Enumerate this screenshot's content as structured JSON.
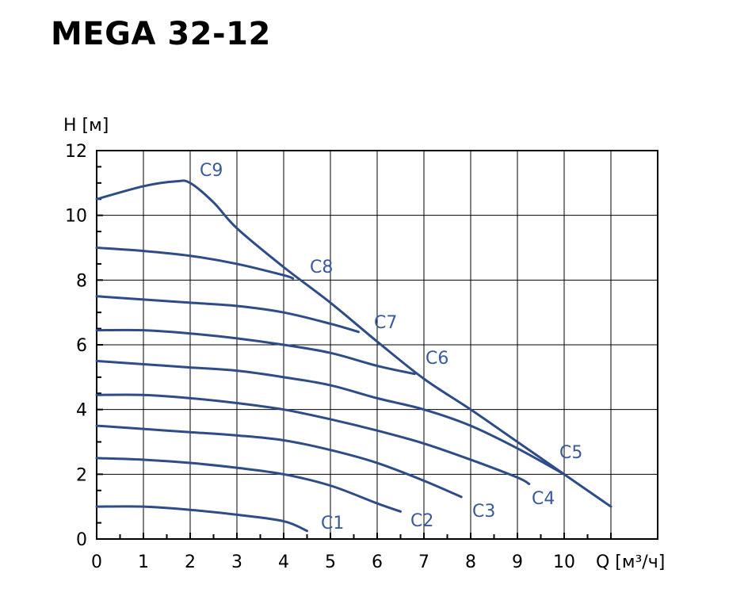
{
  "title": "MEGA 32-12",
  "chart_data": {
    "type": "line",
    "title": "MEGA 32-12",
    "xlabel": "Q [м³/ч]",
    "ylabel": "H [м]",
    "xlim": [
      0,
      11
    ],
    "ylim": [
      0,
      12
    ],
    "xticks": [
      "0",
      "1",
      "2",
      "3",
      "4",
      "5",
      "6",
      "7",
      "8",
      "9",
      "10"
    ],
    "yticks": [
      "0",
      "2",
      "4",
      "6",
      "8",
      "10",
      "12"
    ],
    "grid": true,
    "line_color": "#2e4c87",
    "label_color": "#3a5a99",
    "series": [
      {
        "name": "C1",
        "points": [
          [
            0,
            1.0
          ],
          [
            1,
            1.0
          ],
          [
            2,
            0.9
          ],
          [
            3,
            0.75
          ],
          [
            4,
            0.55
          ],
          [
            4.5,
            0.25
          ]
        ]
      },
      {
        "name": "C2",
        "points": [
          [
            0,
            2.5
          ],
          [
            1,
            2.45
          ],
          [
            2,
            2.35
          ],
          [
            3,
            2.2
          ],
          [
            4,
            2.0
          ],
          [
            5,
            1.65
          ],
          [
            6,
            1.1
          ],
          [
            6.5,
            0.85
          ]
        ]
      },
      {
        "name": "C3",
        "points": [
          [
            0,
            3.5
          ],
          [
            1,
            3.4
          ],
          [
            2,
            3.3
          ],
          [
            3,
            3.2
          ],
          [
            4,
            3.05
          ],
          [
            5,
            2.75
          ],
          [
            6,
            2.35
          ],
          [
            7,
            1.8
          ],
          [
            7.8,
            1.3
          ]
        ]
      },
      {
        "name": "C4",
        "points": [
          [
            0,
            4.45
          ],
          [
            1,
            4.45
          ],
          [
            2,
            4.35
          ],
          [
            3,
            4.2
          ],
          [
            4,
            4.0
          ],
          [
            5,
            3.7
          ],
          [
            6,
            3.35
          ],
          [
            7,
            2.95
          ],
          [
            8,
            2.45
          ],
          [
            9,
            1.9
          ],
          [
            9.25,
            1.7
          ]
        ]
      },
      {
        "name": "C5",
        "points": [
          [
            0,
            5.5
          ],
          [
            1,
            5.4
          ],
          [
            2,
            5.3
          ],
          [
            3,
            5.2
          ],
          [
            4,
            5.0
          ],
          [
            5,
            4.75
          ],
          [
            6,
            4.35
          ],
          [
            7,
            4.0
          ],
          [
            8,
            3.5
          ],
          [
            9,
            2.8
          ],
          [
            10,
            2.0
          ]
        ]
      },
      {
        "name": "C6",
        "points": [
          [
            0,
            6.45
          ],
          [
            1,
            6.45
          ],
          [
            2,
            6.35
          ],
          [
            3,
            6.2
          ],
          [
            4,
            6.0
          ],
          [
            5,
            5.75
          ],
          [
            6,
            5.35
          ],
          [
            6.8,
            5.1
          ]
        ]
      },
      {
        "name": "C7",
        "points": [
          [
            0,
            7.5
          ],
          [
            1,
            7.4
          ],
          [
            2,
            7.3
          ],
          [
            3,
            7.2
          ],
          [
            4,
            7.0
          ],
          [
            5,
            6.65
          ],
          [
            5.6,
            6.4
          ]
        ]
      },
      {
        "name": "C8",
        "points": [
          [
            0,
            9.0
          ],
          [
            1,
            8.9
          ],
          [
            2,
            8.75
          ],
          [
            3,
            8.5
          ],
          [
            4,
            8.15
          ],
          [
            4.2,
            8.05
          ]
        ]
      },
      {
        "name": "C9",
        "points": [
          [
            0,
            10.5
          ],
          [
            1,
            10.9
          ],
          [
            1.7,
            11.05
          ],
          [
            2,
            11.0
          ],
          [
            2.5,
            10.4
          ],
          [
            3,
            9.6
          ],
          [
            4,
            8.4
          ],
          [
            5,
            7.3
          ],
          [
            6,
            6.1
          ],
          [
            7,
            4.95
          ],
          [
            8,
            4.0
          ],
          [
            9,
            3.0
          ],
          [
            10,
            2.0
          ],
          [
            11,
            1.0
          ]
        ]
      }
    ]
  }
}
